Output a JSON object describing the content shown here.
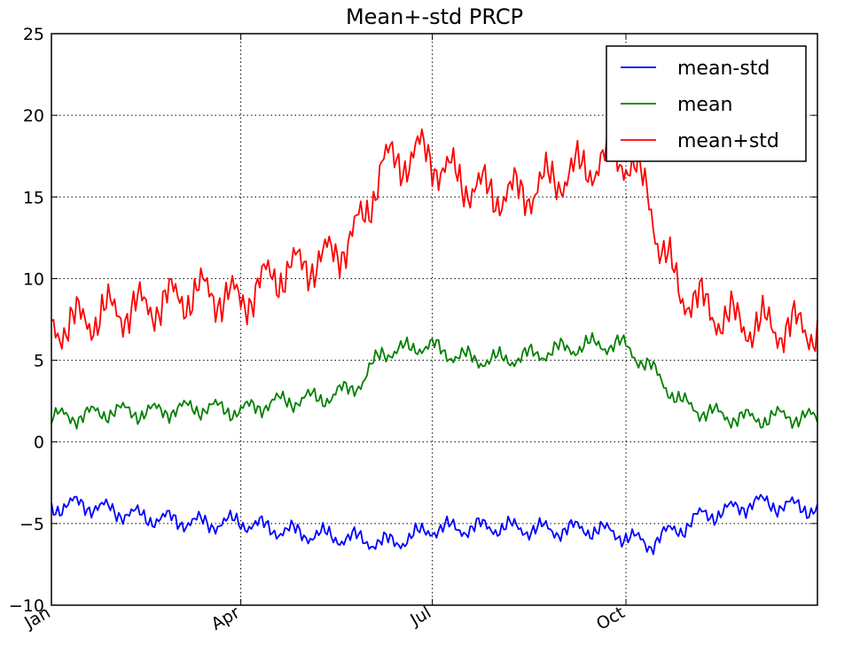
{
  "chart_data": {
    "type": "line",
    "title": "Mean+-std   PRCP",
    "xlabel": "",
    "ylabel": "",
    "x_ticks": [
      "Jan",
      "Apr",
      "Jul",
      "Oct"
    ],
    "x_tick_days": [
      1,
      91,
      182,
      274
    ],
    "xlim": [
      1,
      365
    ],
    "ylim": [
      -10,
      25
    ],
    "y_ticks": [
      -10,
      -5,
      0,
      5,
      10,
      15,
      20,
      25
    ],
    "grid": true,
    "legend_position": "top-right",
    "x_unit": "day of year",
    "x": [
      1,
      15,
      30,
      45,
      60,
      75,
      91,
      105,
      120,
      135,
      150,
      158,
      165,
      175,
      182,
      195,
      210,
      225,
      240,
      255,
      270,
      274,
      285,
      290,
      300,
      310,
      320,
      335,
      350,
      365
    ],
    "series": [
      {
        "name": "mean-std",
        "color": "#0000ff",
        "values": [
          -4.0,
          -3.8,
          -4.2,
          -4.6,
          -4.8,
          -5.0,
          -4.9,
          -5.3,
          -5.6,
          -5.8,
          -6.0,
          -6.2,
          -6.1,
          -5.7,
          -5.3,
          -5.3,
          -5.2,
          -5.3,
          -5.4,
          -5.3,
          -5.6,
          -5.8,
          -6.3,
          -5.8,
          -5.3,
          -4.5,
          -4.3,
          -3.7,
          -3.9,
          -4.1
        ]
      },
      {
        "name": "mean",
        "color": "#008000",
        "values": [
          1.5,
          1.6,
          1.9,
          1.8,
          2.0,
          2.1,
          1.9,
          2.4,
          2.6,
          2.8,
          3.8,
          5.6,
          5.5,
          5.9,
          5.8,
          5.2,
          5.0,
          5.2,
          5.6,
          5.9,
          6.0,
          5.8,
          4.6,
          3.9,
          2.4,
          1.9,
          1.6,
          1.4,
          1.6,
          1.4
        ]
      },
      {
        "name": "mean+std",
        "color": "#ff0000",
        "values": [
          7.0,
          7.4,
          8.0,
          8.2,
          8.8,
          9.2,
          8.6,
          10.1,
          10.8,
          11.4,
          13.6,
          17.2,
          17.0,
          17.8,
          17.3,
          16.0,
          15.2,
          15.2,
          16.1,
          16.8,
          17.6,
          17.3,
          15.2,
          12.0,
          9.2,
          8.4,
          7.6,
          7.1,
          7.0,
          6.9
        ]
      }
    ]
  }
}
